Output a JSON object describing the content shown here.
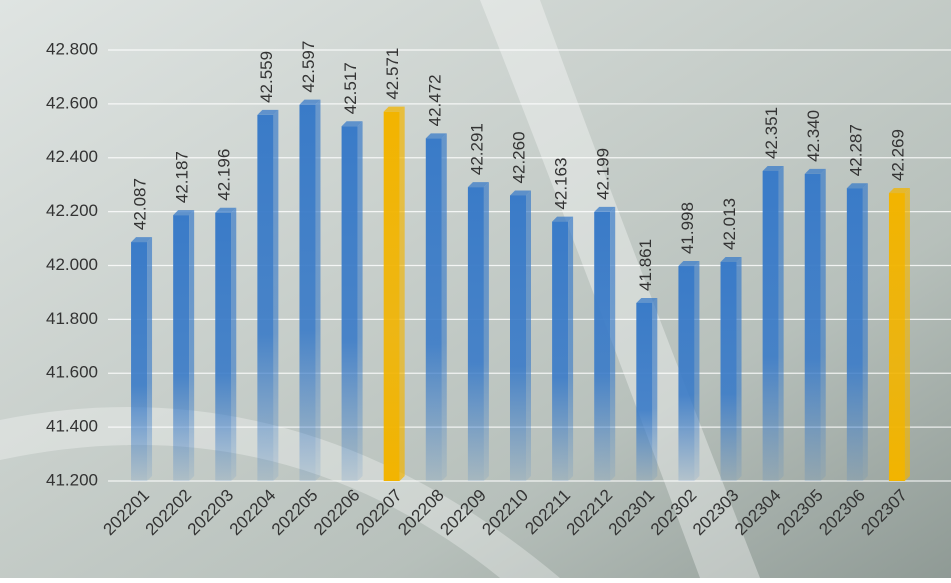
{
  "chart_data": {
    "type": "bar",
    "categories": [
      "202201",
      "202202",
      "202203",
      "202204",
      "202205",
      "202206",
      "202207",
      "202208",
      "202209",
      "202210",
      "202211",
      "202212",
      "202301",
      "202302",
      "202303",
      "202304",
      "202305",
      "202306",
      "202307"
    ],
    "values": [
      42.087,
      42.187,
      42.196,
      42.559,
      42.597,
      42.517,
      42.571,
      42.472,
      42.291,
      42.26,
      42.163,
      42.199,
      41.861,
      41.998,
      42.013,
      42.351,
      42.34,
      42.287,
      42.269
    ],
    "value_labels": [
      "42.087",
      "42.187",
      "42.196",
      "42.559",
      "42.597",
      "42.517",
      "42.571",
      "42.472",
      "42.291",
      "42.260",
      "42.163",
      "42.199",
      "41.861",
      "41.998",
      "42.013",
      "42.351",
      "42.340",
      "42.287",
      "42.269"
    ],
    "colors": [
      "#3a7bc8",
      "#3a7bc8",
      "#3a7bc8",
      "#3a7bc8",
      "#3a7bc8",
      "#3a7bc8",
      "#f2b400",
      "#3a7bc8",
      "#3a7bc8",
      "#3a7bc8",
      "#3a7bc8",
      "#3a7bc8",
      "#3a7bc8",
      "#3a7bc8",
      "#3a7bc8",
      "#3a7bc8",
      "#3a7bc8",
      "#3a7bc8",
      "#f2b400"
    ],
    "ylim": [
      41.2,
      42.8
    ],
    "yticks": [
      {
        "value": 41.2,
        "label": "41.200"
      },
      {
        "value": 41.4,
        "label": "41.400"
      },
      {
        "value": 41.6,
        "label": "41.600"
      },
      {
        "value": 41.8,
        "label": "41.800"
      },
      {
        "value": 42.0,
        "label": "42.000"
      },
      {
        "value": 42.2,
        "label": "42.200"
      },
      {
        "value": 42.4,
        "label": "42.400"
      },
      {
        "value": 42.6,
        "label": "42.600"
      },
      {
        "value": 42.8,
        "label": "42.800"
      }
    ],
    "grid": true
  }
}
